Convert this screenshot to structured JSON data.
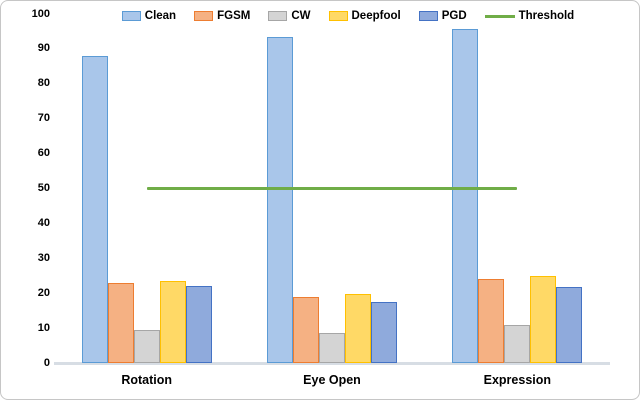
{
  "chart_data": {
    "type": "bar",
    "title": "",
    "xlabel": "",
    "ylabel": "",
    "categories": [
      "Rotation",
      "Eye Open",
      "Expression"
    ],
    "series": [
      {
        "name": "Clean",
        "values": [
          88,
          93.4,
          95.6
        ],
        "fill": "#A9C6EA",
        "border": "#5B9BD5"
      },
      {
        "name": "FGSM",
        "values": [
          23,
          18.8,
          24.1
        ],
        "fill": "#F5B183",
        "border": "#ED7D31"
      },
      {
        "name": "CW",
        "values": [
          9.5,
          8.7,
          11
        ],
        "fill": "#D4D4D4",
        "border": "#A6A6A6"
      },
      {
        "name": "Deepfool",
        "values": [
          23.5,
          19.8,
          24.9
        ],
        "fill": "#FFD966",
        "border": "#FFC000"
      },
      {
        "name": "PGD",
        "values": [
          22.1,
          17.5,
          21.9
        ],
        "fill": "#8FAADC",
        "border": "#4472C4"
      }
    ],
    "threshold_series": {
      "name": "Threshold",
      "values": [
        50,
        50,
        50
      ],
      "color": "#70AD47"
    },
    "ylim": [
      0,
      100
    ],
    "yticks": [
      0,
      10,
      20,
      30,
      40,
      50,
      60,
      70,
      80,
      90,
      100
    ],
    "grid": false,
    "legend_position": "top",
    "legend_entries": [
      "Clean",
      "FGSM",
      "CW",
      "Deepfool",
      "PGD",
      "Threshold"
    ]
  }
}
